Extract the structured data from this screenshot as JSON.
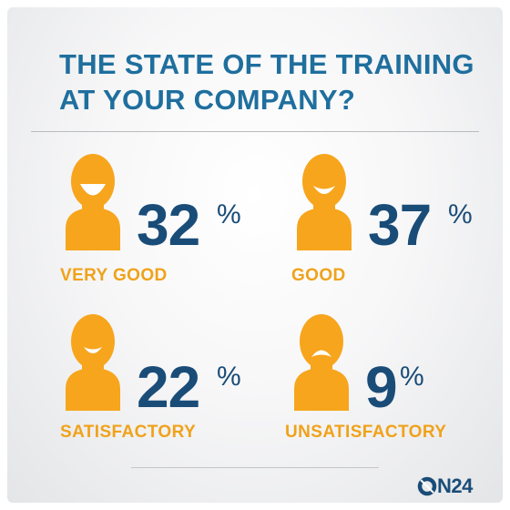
{
  "chart_data": {
    "type": "infographic",
    "title": "THE STATE OF THE TRAINING AT YOUR COMPANY?",
    "title_lines": [
      "THE STATE OF THE TRAINING",
      "AT YOUR COMPANY?"
    ],
    "unit": "%",
    "items": [
      {
        "label": "VERY GOOD",
        "value": 32,
        "mood": "very-happy"
      },
      {
        "label": "GOOD",
        "value": 37,
        "mood": "happy"
      },
      {
        "label": "SATISFACTORY",
        "value": 22,
        "mood": "content"
      },
      {
        "label": "UNSATISFACTORY",
        "value": 9,
        "mood": "sad"
      }
    ]
  },
  "colors": {
    "title": "#1f6f9e",
    "value": "#1a4c78",
    "label": "#f0a21a",
    "person": "#f7a51d"
  },
  "logo": {
    "text": "N24",
    "icon": "on24-o-icon"
  }
}
